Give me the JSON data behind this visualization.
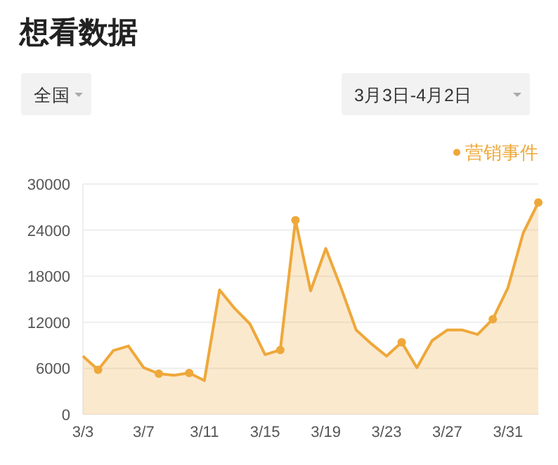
{
  "chart_data": {
    "type": "area",
    "title": "想看数据",
    "annotations": [
      "全国",
      "3月3日-4月2日"
    ],
    "series": [
      {
        "color": "#eea83a",
        "x": [
          "--03-03",
          "--03-04",
          "--03-05",
          "--03-06",
          "--03-07",
          "--03-08",
          "--03-09",
          "--03-10",
          "--03-11",
          "--03-12",
          "--03-13",
          "--03-14",
          "--03-15",
          "--03-16",
          "--03-17",
          "--03-18",
          "--03-19",
          "--03-20",
          "--03-21",
          "--03-22",
          "--03-23",
          "--03-24",
          "--03-25",
          "--03-26",
          "--03-27",
          "--03-28",
          "--03-29",
          "--03-30",
          "--03-31",
          "--04-01",
          "--04-02"
        ],
        "values": [
          7600,
          5800,
          8300,
          8900,
          6100,
          5300,
          5100,
          5400,
          4400,
          16200,
          13800,
          11800,
          7800,
          8400,
          25300,
          16100,
          21600,
          16500,
          11000,
          9200,
          7600,
          9400,
          6100,
          9600,
          11000,
          11000,
          10400,
          12400,
          16500,
          23600,
          27600
        ]
      },
      {
        "type": "scatter",
        "name": "营销事件",
        "color": "#eea83a",
        "marker": "circle",
        "x": [
          "--03-04",
          "--03-08",
          "--03-10",
          "--03-16",
          "--03-17",
          "--03-24",
          "--03-30",
          "--04-02"
        ],
        "values": [
          5800,
          5300,
          5400,
          8400,
          25300,
          9400,
          12400,
          27600
        ]
      }
    ],
    "xlim": [
      "--03-03",
      "--04-02"
    ],
    "xticks": [
      {
        "value": "--03-03",
        "label": "3/3"
      },
      {
        "value": "--03-07",
        "label": "3/7"
      },
      {
        "value": "--03-11",
        "label": "3/11"
      },
      {
        "value": "--03-15",
        "label": "3/15"
      },
      {
        "value": "--03-19",
        "label": "3/19"
      },
      {
        "value": "--03-23",
        "label": "3/23"
      },
      {
        "value": "--03-27",
        "label": "3/27"
      },
      {
        "value": "--03-31",
        "label": "3/31"
      }
    ],
    "ylim": [
      0,
      30000
    ],
    "yticks": [
      0,
      6000,
      12000,
      18000,
      24000,
      30000
    ],
    "grid": "y",
    "legend": "top right"
  }
}
